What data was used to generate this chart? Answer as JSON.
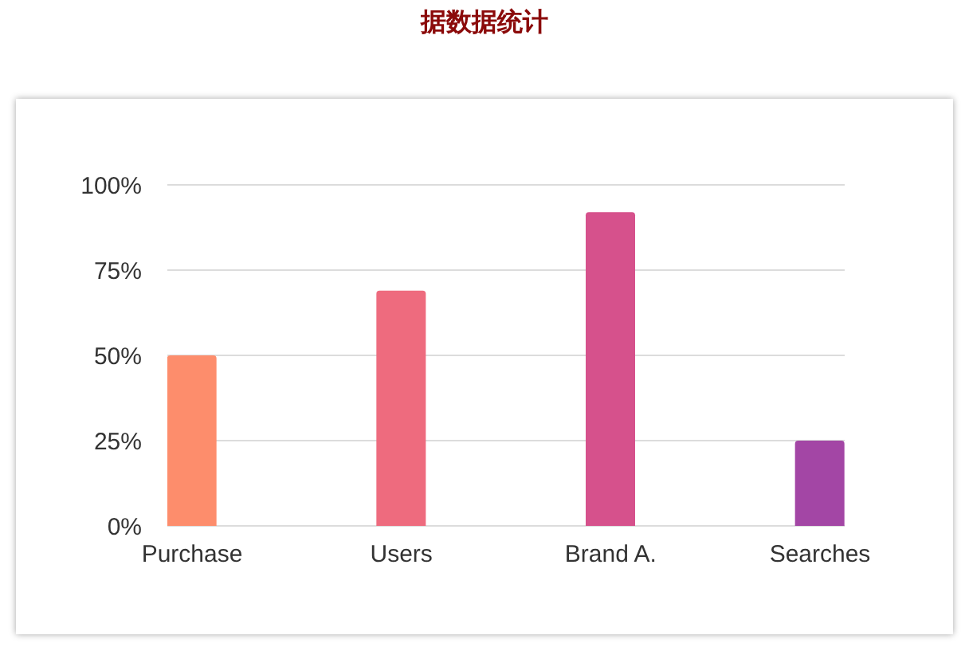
{
  "chart_data": {
    "type": "bar",
    "title": "据数据统计",
    "categories": [
      "Purchase",
      "Users",
      "Brand A.",
      "Searches"
    ],
    "values": [
      50,
      69,
      92,
      25
    ],
    "colors": [
      "#fd8d6c",
      "#ee6b7e",
      "#d6518c",
      "#a346a5"
    ],
    "ylim": [
      0,
      100
    ],
    "yticks": [
      {
        "value": 0,
        "label": "0%"
      },
      {
        "value": 25,
        "label": "25%"
      },
      {
        "value": 50,
        "label": "50%"
      },
      {
        "value": 75,
        "label": "75%"
      },
      {
        "value": 100,
        "label": "100%"
      }
    ],
    "grid": "y"
  }
}
